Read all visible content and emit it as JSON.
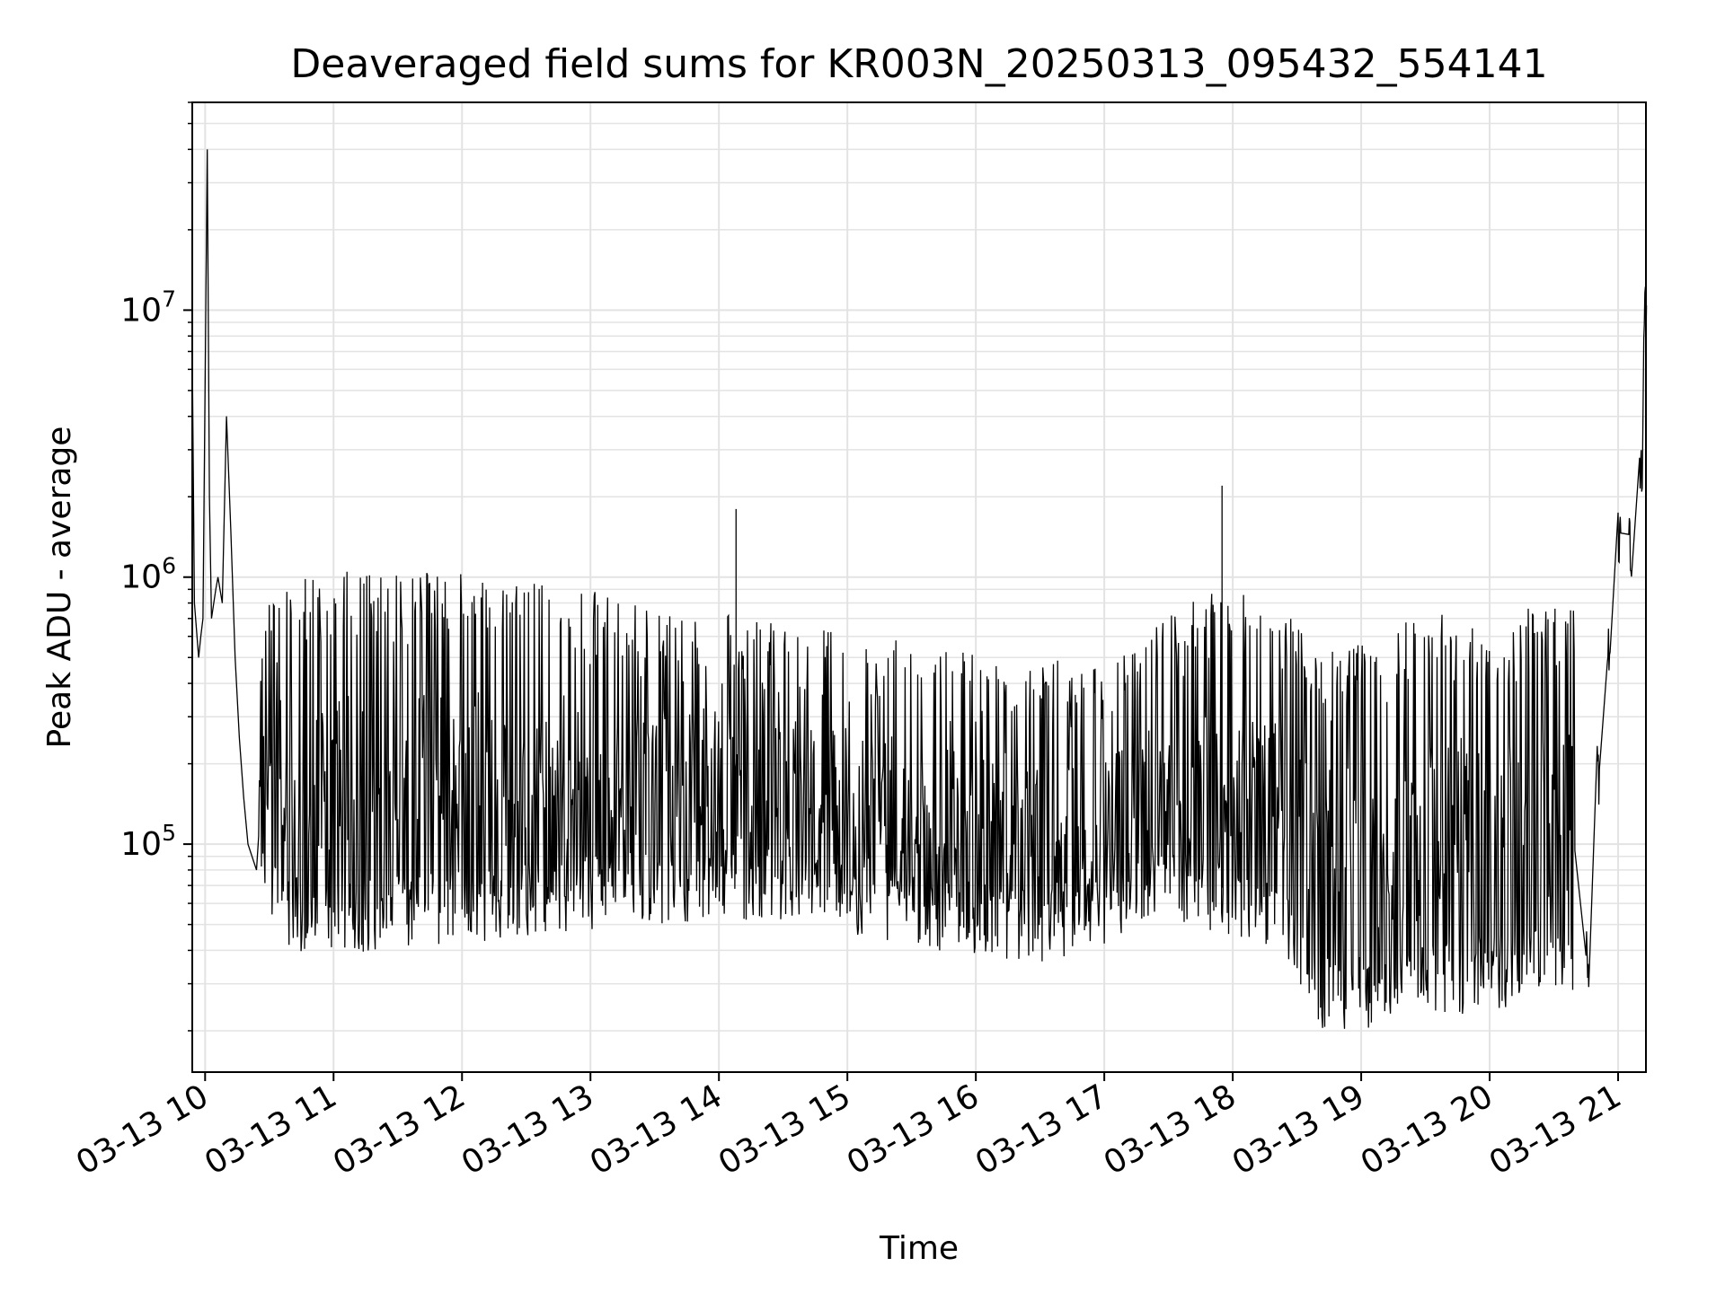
{
  "chart_data": {
    "type": "line",
    "title": "Deaveraged field sums for KR003N_20250313_095432_554141",
    "xlabel": "Time",
    "ylabel": "Peak ADU - average",
    "x_scale": "time",
    "y_scale": "log",
    "xlim": [
      "2025-03-13T09:54",
      "2025-03-13T21:13"
    ],
    "ylim": [
      14000,
      60000000
    ],
    "grid": true,
    "legend": "none",
    "x_ticks": [
      {
        "t": "2025-03-13T10:00",
        "label": "03-13 10"
      },
      {
        "t": "2025-03-13T11:00",
        "label": "03-13 11"
      },
      {
        "t": "2025-03-13T12:00",
        "label": "03-13 12"
      },
      {
        "t": "2025-03-13T13:00",
        "label": "03-13 13"
      },
      {
        "t": "2025-03-13T14:00",
        "label": "03-13 14"
      },
      {
        "t": "2025-03-13T15:00",
        "label": "03-13 15"
      },
      {
        "t": "2025-03-13T16:00",
        "label": "03-13 16"
      },
      {
        "t": "2025-03-13T17:00",
        "label": "03-13 17"
      },
      {
        "t": "2025-03-13T18:00",
        "label": "03-13 18"
      },
      {
        "t": "2025-03-13T19:00",
        "label": "03-13 19"
      },
      {
        "t": "2025-03-13T20:00",
        "label": "03-13 20"
      },
      {
        "t": "2025-03-13T21:00",
        "label": "03-13 21"
      }
    ],
    "y_ticks": [
      {
        "value": 100000,
        "base": "10",
        "exp": "5"
      },
      {
        "value": 1000000,
        "base": "10",
        "exp": "6"
      },
      {
        "value": 10000000,
        "base": "10",
        "exp": "7"
      }
    ],
    "series": [
      {
        "color": "#000000",
        "x": [
          "2025-03-13T09:54",
          "2025-03-13T09:55",
          "2025-03-13T09:57",
          "2025-03-13T09:58",
          "2025-03-13T09:59",
          "2025-03-13T10:01",
          "2025-03-13T10:02",
          "2025-03-13T10:03",
          "2025-03-13T10:05",
          "2025-03-13T10:06",
          "2025-03-13T10:08",
          "2025-03-13T10:10",
          "2025-03-13T10:12",
          "2025-03-13T10:14",
          "2025-03-13T10:16",
          "2025-03-13T10:18",
          "2025-03-13T10:20",
          "2025-03-13T10:24",
          "2025-03-13T10:30",
          "2025-03-13T10:37",
          "2025-03-13T10:45",
          "2025-03-13T10:52",
          "2025-03-13T11:00",
          "2025-03-13T11:10",
          "2025-03-13T11:20",
          "2025-03-13T11:30",
          "2025-03-13T11:40",
          "2025-03-13T11:50",
          "2025-03-13T12:00",
          "2025-03-13T12:15",
          "2025-03-13T12:30",
          "2025-03-13T12:45",
          "2025-03-13T13:00",
          "2025-03-13T13:15",
          "2025-03-13T13:30",
          "2025-03-13T13:45",
          "2025-03-13T14:00",
          "2025-03-13T14:08",
          "2025-03-13T14:15",
          "2025-03-13T14:30",
          "2025-03-13T14:45",
          "2025-03-13T15:00",
          "2025-03-13T15:15",
          "2025-03-13T15:30",
          "2025-03-13T15:45",
          "2025-03-13T16:00",
          "2025-03-13T16:15",
          "2025-03-13T16:30",
          "2025-03-13T16:45",
          "2025-03-13T17:00",
          "2025-03-13T17:15",
          "2025-03-13T17:30",
          "2025-03-13T17:45",
          "2025-03-13T17:55",
          "2025-03-13T18:05",
          "2025-03-13T18:15",
          "2025-03-13T18:25",
          "2025-03-13T18:35",
          "2025-03-13T18:45",
          "2025-03-13T19:00",
          "2025-03-13T19:15",
          "2025-03-13T19:30",
          "2025-03-13T19:45",
          "2025-03-13T20:00",
          "2025-03-13T20:15",
          "2025-03-13T20:30",
          "2025-03-13T20:40",
          "2025-03-13T20:45",
          "2025-03-13T20:50",
          "2025-03-13T20:55",
          "2025-03-13T21:00",
          "2025-03-13T21:05",
          "2025-03-13T21:10",
          "2025-03-13T21:12"
        ],
        "y": [
          7000000,
          800000,
          500000,
          600000,
          700000,
          40000000,
          2000000,
          700000,
          900000,
          1000000,
          800000,
          4000000,
          1500000,
          500000,
          250000,
          150000,
          100000,
          80000,
          60000,
          65000,
          62000,
          60000,
          65000,
          60000,
          62000,
          60000,
          58000,
          60000,
          62000,
          63000,
          65000,
          68000,
          70000,
          75000,
          78000,
          80000,
          82000,
          1800000,
          80000,
          82000,
          80000,
          75000,
          70000,
          68000,
          62000,
          60000,
          58000,
          60000,
          65000,
          80000,
          150000,
          200000,
          250000,
          2200000,
          200000,
          300000,
          600000,
          800000,
          50000,
          45000,
          40000,
          35000,
          38000,
          40000,
          42000,
          45000,
          48000,
          40000,
          200000,
          500000,
          1500000,
          1400000,
          2500000,
          10000000
        ]
      }
    ],
    "envelope": {
      "x": [
        "2025-03-13T10:25",
        "2025-03-13T10:40",
        "2025-03-13T11:00",
        "2025-03-13T11:30",
        "2025-03-13T12:00",
        "2025-03-13T12:30",
        "2025-03-13T13:00",
        "2025-03-13T13:30",
        "2025-03-13T14:00",
        "2025-03-13T14:30",
        "2025-03-13T15:00",
        "2025-03-13T15:30",
        "2025-03-13T16:00",
        "2025-03-13T16:30",
        "2025-03-13T17:00",
        "2025-03-13T17:30",
        "2025-03-13T18:00",
        "2025-03-13T18:20",
        "2025-03-13T18:40",
        "2025-03-13T19:00",
        "2025-03-13T19:30",
        "2025-03-13T20:00",
        "2025-03-13T20:30",
        "2025-03-13T20:40"
      ],
      "upper": [
        700000,
        950000,
        1000000,
        1000000,
        1000000,
        950000,
        850000,
        750000,
        700000,
        650000,
        600000,
        550000,
        500000,
        480000,
        450000,
        700000,
        900000,
        800000,
        500000,
        550000,
        700000,
        700000,
        750000,
        750000
      ],
      "lower": [
        60000,
        40000,
        38000,
        40000,
        42000,
        45000,
        48000,
        50000,
        52000,
        50000,
        45000,
        40000,
        38000,
        35000,
        40000,
        50000,
        45000,
        40000,
        20000,
        20000,
        22000,
        24000,
        26000,
        28000
      ]
    }
  }
}
